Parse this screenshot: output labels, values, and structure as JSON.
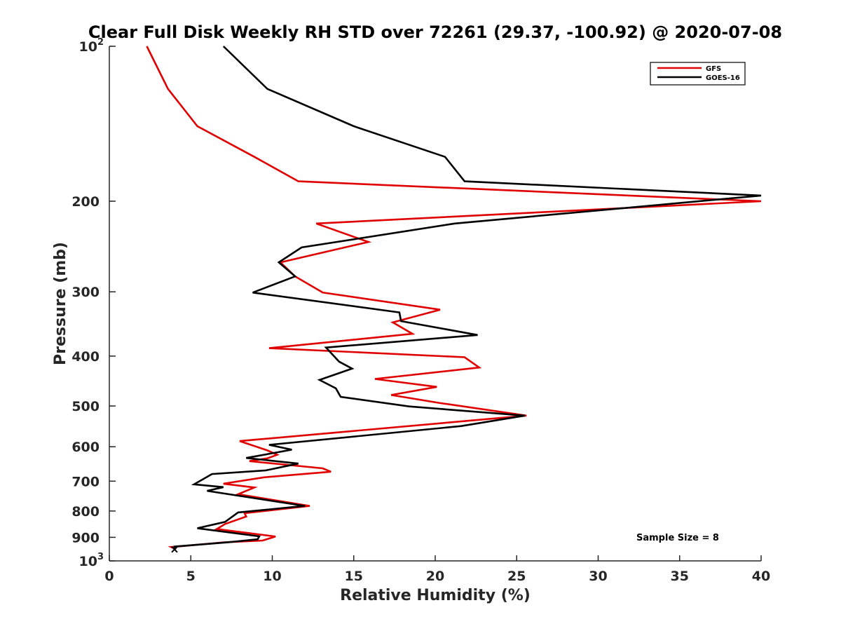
{
  "chart_data": {
    "type": "line",
    "title": "Clear Full Disk Weekly RH STD over 72261 (29.37, -100.92) @ 2020-07-08",
    "xlabel": "Relative Humidity (%)",
    "ylabel": "Pressure (mb)",
    "xlim": [
      0,
      40
    ],
    "ylim": [
      100,
      1000
    ],
    "yscale": "log",
    "yreversed": true,
    "xticks": [
      0,
      5,
      10,
      15,
      20,
      25,
      30,
      35,
      40
    ],
    "yticks": [
      {
        "value": 100,
        "label": "10",
        "sup": "2"
      },
      {
        "value": 200,
        "label": "200"
      },
      {
        "value": 300,
        "label": "300"
      },
      {
        "value": 400,
        "label": "400"
      },
      {
        "value": 500,
        "label": "500"
      },
      {
        "value": 600,
        "label": "600"
      },
      {
        "value": 700,
        "label": "700"
      },
      {
        "value": 800,
        "label": "800"
      },
      {
        "value": 900,
        "label": "900"
      },
      {
        "value": 1000,
        "label": "10",
        "sup": "3"
      }
    ],
    "legend_position": "top-right",
    "grid": false,
    "annotation": "Sample Size = 8",
    "series": [
      {
        "name": "GFS",
        "color": "#e00000",
        "points": [
          [
            2.3,
            100
          ],
          [
            3.6,
            121
          ],
          [
            5.4,
            143
          ],
          [
            8.9,
            164
          ],
          [
            11.6,
            183
          ],
          [
            40,
            200
          ],
          [
            12.7,
            221
          ],
          [
            15.9,
            240
          ],
          [
            10.5,
            263
          ],
          [
            11.4,
            280
          ],
          [
            13.1,
            301
          ],
          [
            20.3,
            325
          ],
          [
            17.4,
            344
          ],
          [
            18.6,
            362
          ],
          [
            9.8,
            386
          ],
          [
            21.8,
            402
          ],
          [
            22.7,
            421
          ],
          [
            16.3,
            443
          ],
          [
            20.1,
            459
          ],
          [
            17.3,
            476
          ],
          [
            20.2,
            493
          ],
          [
            25.6,
            522
          ],
          [
            8.0,
            585
          ],
          [
            9.7,
            610
          ],
          [
            10.3,
            622
          ],
          [
            9.7,
            632
          ],
          [
            8.6,
            640
          ],
          [
            13.1,
            661
          ],
          [
            13.6,
            671
          ],
          [
            9.5,
            688
          ],
          [
            7.0,
            708
          ],
          [
            8.9,
            720
          ],
          [
            7.9,
            742
          ],
          [
            12.3,
            782
          ],
          [
            8.3,
            808
          ],
          [
            8.4,
            820
          ],
          [
            7.1,
            848
          ],
          [
            6.6,
            867
          ],
          [
            10.2,
            897
          ],
          [
            9.4,
            913
          ],
          [
            7.1,
            920
          ],
          [
            3.8,
            940
          ],
          [
            4.1,
            950
          ]
        ]
      },
      {
        "name": "GOES-16",
        "color": "#000000",
        "points": [
          [
            7.0,
            100
          ],
          [
            9.7,
            121
          ],
          [
            15.0,
            143
          ],
          [
            20.6,
            164
          ],
          [
            21.8,
            183
          ],
          [
            40,
            195
          ],
          [
            21.2,
            221
          ],
          [
            11.8,
            246
          ],
          [
            10.4,
            263
          ],
          [
            11.4,
            280
          ],
          [
            8.8,
            301
          ],
          [
            17.8,
            329
          ],
          [
            17.9,
            342
          ],
          [
            22.6,
            364
          ],
          [
            13.3,
            385
          ],
          [
            14.1,
            410
          ],
          [
            14.9,
            423
          ],
          [
            12.9,
            445
          ],
          [
            13.9,
            462
          ],
          [
            14.2,
            480
          ],
          [
            18.4,
            501
          ],
          [
            25.5,
            522
          ],
          [
            21.6,
            547
          ],
          [
            9.8,
            595
          ],
          [
            11.2,
            608
          ],
          [
            8.4,
            631
          ],
          [
            11.6,
            647
          ],
          [
            9.6,
            667
          ],
          [
            6.3,
            678
          ],
          [
            5.2,
            710
          ],
          [
            7.0,
            719
          ],
          [
            6.0,
            731
          ],
          [
            12.0,
            782
          ],
          [
            7.9,
            805
          ],
          [
            7.1,
            840
          ],
          [
            5.4,
            864
          ],
          [
            9.2,
            896
          ],
          [
            9.1,
            908
          ],
          [
            7.3,
            920
          ],
          [
            4.0,
            938
          ],
          [
            4.0,
            950
          ]
        ]
      }
    ]
  }
}
